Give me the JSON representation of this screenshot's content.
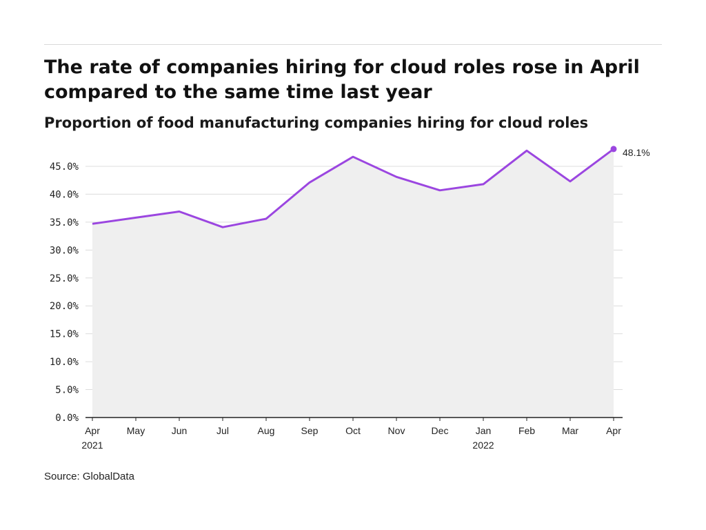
{
  "header": {
    "title": "The rate of companies hiring for cloud roles rose in April compared to the same time last year",
    "subtitle": "Proportion of food manufacturing companies hiring for cloud roles"
  },
  "footer": {
    "source": "Source: GlobalData"
  },
  "chart_data": {
    "type": "area",
    "title": "The rate of companies hiring for cloud roles rose in April compared to the same time last year",
    "subtitle": "Proportion of food manufacturing companies hiring for cloud roles",
    "xlabel": "",
    "ylabel": "",
    "categories": [
      "Apr 2021",
      "May 2021",
      "Jun 2021",
      "Jul 2021",
      "Aug 2021",
      "Sep 2021",
      "Oct 2021",
      "Nov 2021",
      "Dec 2021",
      "Jan 2022",
      "Feb 2022",
      "Mar 2022",
      "Apr 2022"
    ],
    "x_tick_labels": [
      {
        "month": "Apr",
        "year": "2021"
      },
      {
        "month": "May",
        "year": ""
      },
      {
        "month": "Jun",
        "year": ""
      },
      {
        "month": "Jul",
        "year": ""
      },
      {
        "month": "Aug",
        "year": ""
      },
      {
        "month": "Sep",
        "year": ""
      },
      {
        "month": "Oct",
        "year": ""
      },
      {
        "month": "Nov",
        "year": ""
      },
      {
        "month": "Dec",
        "year": ""
      },
      {
        "month": "Jan",
        "year": "2022"
      },
      {
        "month": "Feb",
        "year": ""
      },
      {
        "month": "Mar",
        "year": ""
      },
      {
        "month": "Apr",
        "year": ""
      }
    ],
    "series": [
      {
        "values": [
          34.7,
          35.8,
          36.9,
          34.1,
          35.6,
          42.1,
          46.7,
          43.1,
          40.7,
          41.8,
          47.8,
          42.3,
          48.1
        ]
      }
    ],
    "y_ticks": [
      0,
      5,
      10,
      15,
      20,
      25,
      30,
      35,
      40,
      45
    ],
    "y_tick_labels": [
      "0.0%",
      "5.0%",
      "10.0%",
      "15.0%",
      "20.0%",
      "25.0%",
      "30.0%",
      "35.0%",
      "40.0%",
      "45.0%"
    ],
    "ylim": [
      0,
      49.2
    ],
    "grid": true,
    "end_label": "48.1%",
    "colors": {
      "line": "#9b46e0",
      "area": "#efefef",
      "grid": "#dcdcdc",
      "axis": "#222222"
    }
  }
}
